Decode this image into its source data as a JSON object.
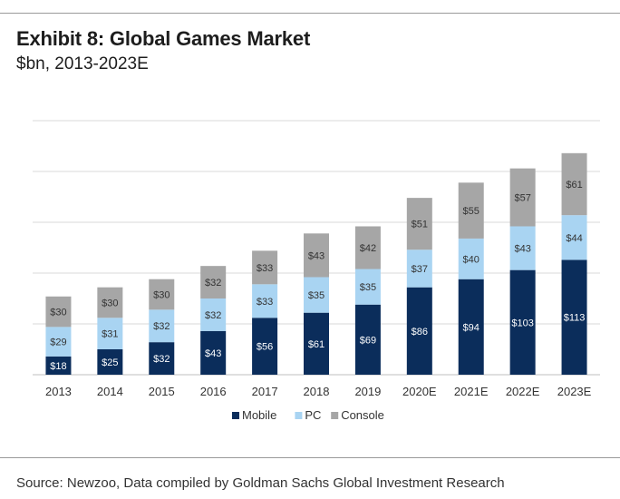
{
  "header": {
    "title": "Exhibit 8: Global Games Market",
    "subtitle": "$bn, 2013-2023E"
  },
  "footer": {
    "source": "Source: Newzoo, Data compiled by Goldman Sachs Global Investment Research"
  },
  "chart_data": {
    "type": "bar",
    "stacked": true,
    "title": "Exhibit 8: Global Games Market",
    "subtitle": "$bn, 2013-2023E",
    "xlabel": "",
    "ylabel": "",
    "ylim": [
      0,
      250
    ],
    "grid": true,
    "legend": "bottom-center",
    "categories": [
      "2013",
      "2014",
      "2015",
      "2016",
      "2017",
      "2018",
      "2019",
      "2020E",
      "2021E",
      "2022E",
      "2023E"
    ],
    "series": [
      {
        "name": "Mobile",
        "color": "#0b2d5b",
        "label_color": "#ffffff",
        "values": [
          18,
          25,
          32,
          43,
          56,
          61,
          69,
          86,
          94,
          103,
          113
        ]
      },
      {
        "name": "PC",
        "color": "#a9d4f2",
        "label_color": "#333333",
        "values": [
          29,
          31,
          32,
          32,
          33,
          35,
          35,
          37,
          40,
          43,
          44
        ]
      },
      {
        "name": "Console",
        "color": "#a6a6a6",
        "label_color": "#333333",
        "values": [
          30,
          30,
          30,
          32,
          33,
          43,
          42,
          51,
          55,
          57,
          61
        ]
      }
    ]
  }
}
